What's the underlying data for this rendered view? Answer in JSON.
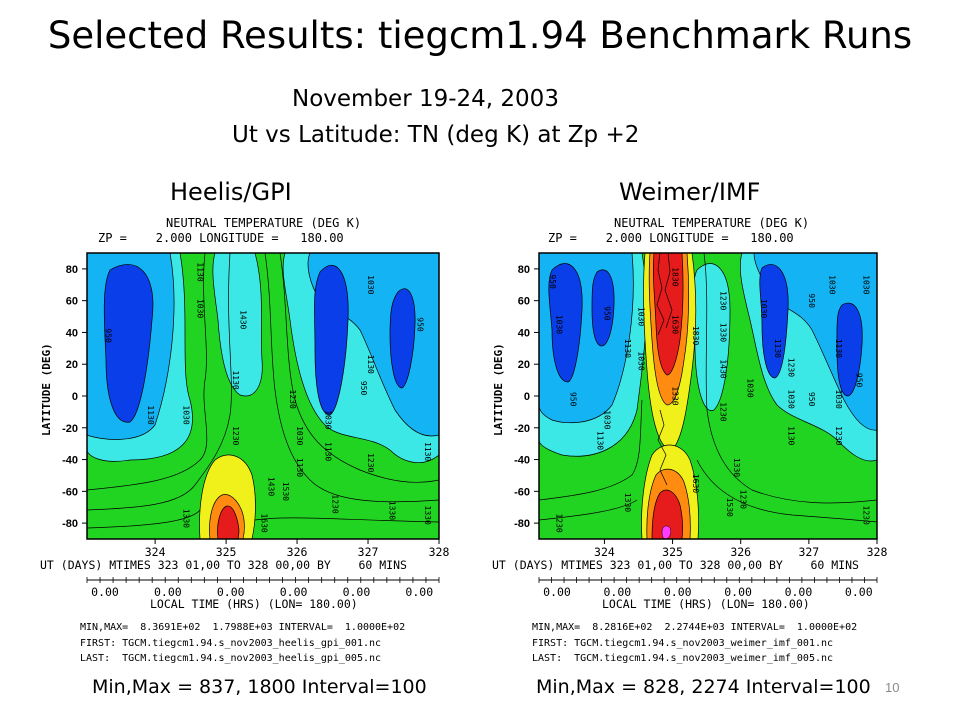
{
  "slide": {
    "title": "Selected Results: tiegcm1.94 Benchmark Runs",
    "date_line": "November 19-24, 2003",
    "subtitle": "Ut vs Latitude: TN (deg K) at Zp +2",
    "slide_number": "10"
  },
  "colors": {
    "dark_blue": "#0a3ee8",
    "light_blue": "#14b4f4",
    "cyan": "#3ce8e6",
    "green": "#22d422",
    "yellow": "#f0f01a",
    "orange": "#ff8c10",
    "red": "#e61b1b",
    "magenta": "#ff3cff"
  },
  "panels": [
    {
      "title": "Heelis/GPI",
      "plot_header_1": "NEUTRAL TEMPERATURE (DEG K)",
      "plot_header_2": "ZP =    2.000 LONGITUDE =   180.00",
      "ut_axis_line": "UT (DAYS) MTIMES 323 01,00 TO 328 00,00 BY    60 MINS",
      "local_time_ticks": [
        "0.00",
        "0.00",
        "0.00",
        "0.00",
        "0.00",
        "0.00"
      ],
      "local_time_label": "LOCAL TIME (HRS) (LON= 180.00)",
      "minmax_line": "MIN,MAX=  8.3691E+02  1.7988E+03 INTERVAL=  1.0000E+02",
      "first_line": "FIRST: TGCM.tiegcm1.94.s_nov2003_heelis_gpi_001.nc",
      "last_line": "LAST:  TGCM.tiegcm1.94.s_nov2003_heelis_gpi_005.nc",
      "summary": "Min,Max = 837, 1800 Interval=100"
    },
    {
      "title": "Weimer/IMF",
      "plot_header_1": "NEUTRAL TEMPERATURE (DEG K)",
      "plot_header_2": "ZP =    2.000 LONGITUDE =   180.00",
      "ut_axis_line": "UT (DAYS) MTIMES 323 01,00 TO 328 00,00 BY    60 MINS",
      "local_time_ticks": [
        "0.00",
        "0.00",
        "0.00",
        "0.00",
        "0.00",
        "0.00"
      ],
      "local_time_label": "LOCAL TIME (HRS) (LON= 180.00)",
      "minmax_line": "MIN,MAX=  8.2816E+02  2.2744E+03 INTERVAL=  1.0000E+02",
      "first_line": "FIRST: TGCM.tiegcm1.94.s_nov2003_weimer_imf_001.nc",
      "last_line": "LAST:  TGCM.tiegcm1.94.s_nov2003_weimer_imf_005.nc",
      "summary": "Min,Max = 828, 2274 Interval=100"
    }
  ],
  "chart_data": [
    {
      "type": "heatmap",
      "title": "NEUTRAL TEMPERATURE (DEG K)",
      "ylabel": "LATITUDE (DEG)",
      "xlim": [
        323.04,
        328.0
      ],
      "ylim": [
        -90,
        90
      ],
      "x_ticks": [
        324,
        325,
        326,
        327,
        328
      ],
      "y_ticks": [
        80,
        60,
        40,
        20,
        0,
        -20,
        -40,
        -60,
        -80
      ],
      "contour_interval": 100,
      "min": 837,
      "max": 1800,
      "contour_labels": [
        {
          "text": "1130",
          "x": 324.6,
          "y": 78
        },
        {
          "text": "1030",
          "x": 324.6,
          "y": 55
        },
        {
          "text": "1430",
          "x": 325.2,
          "y": 48
        },
        {
          "text": "950",
          "x": 323.3,
          "y": 38
        },
        {
          "text": "1130",
          "x": 325.1,
          "y": 10
        },
        {
          "text": "1130",
          "x": 323.9,
          "y": -12
        },
        {
          "text": "1030",
          "x": 324.4,
          "y": -12
        },
        {
          "text": "1230",
          "x": 325.1,
          "y": -25
        },
        {
          "text": "1230",
          "x": 325.9,
          "y": -2
        },
        {
          "text": "1030",
          "x": 326.0,
          "y": -25
        },
        {
          "text": "1130",
          "x": 326.0,
          "y": -45
        },
        {
          "text": "1030",
          "x": 326.4,
          "y": -15
        },
        {
          "text": "1130",
          "x": 326.4,
          "y": -35
        },
        {
          "text": "1430",
          "x": 325.6,
          "y": -57
        },
        {
          "text": "1530",
          "x": 325.8,
          "y": -60
        },
        {
          "text": "1630",
          "x": 325.5,
          "y": -80
        },
        {
          "text": "1330",
          "x": 324.4,
          "y": -77
        },
        {
          "text": "1230",
          "x": 326.5,
          "y": -68
        },
        {
          "text": "1230",
          "x": 327.0,
          "y": -42
        },
        {
          "text": "1330",
          "x": 327.3,
          "y": -72
        },
        {
          "text": "1130",
          "x": 327.0,
          "y": 20
        },
        {
          "text": "1030",
          "x": 327.0,
          "y": 70
        },
        {
          "text": "950",
          "x": 326.9,
          "y": 5
        },
        {
          "text": "950",
          "x": 327.7,
          "y": 45
        },
        {
          "text": "1130",
          "x": 327.8,
          "y": -35
        },
        {
          "text": "1330",
          "x": 327.8,
          "y": -75
        }
      ]
    },
    {
      "type": "heatmap",
      "title": "NEUTRAL TEMPERATURE (DEG K)",
      "ylabel": "LATITUDE (DEG)",
      "xlim": [
        323.04,
        328.0
      ],
      "ylim": [
        -90,
        90
      ],
      "x_ticks": [
        324,
        325,
        326,
        327,
        328
      ],
      "y_ticks": [
        80,
        60,
        40,
        20,
        0,
        -20,
        -40,
        -60,
        -80
      ],
      "contour_interval": 100,
      "min": 828,
      "max": 2274,
      "contour_labels": [
        {
          "text": "950",
          "x": 323.2,
          "y": 72
        },
        {
          "text": "1030",
          "x": 323.3,
          "y": 45
        },
        {
          "text": "950",
          "x": 323.5,
          "y": -2
        },
        {
          "text": "950",
          "x": 324.0,
          "y": 52
        },
        {
          "text": "1030",
          "x": 324.5,
          "y": 50
        },
        {
          "text": "1130",
          "x": 324.3,
          "y": 30
        },
        {
          "text": "1030",
          "x": 324.5,
          "y": 22
        },
        {
          "text": "1030",
          "x": 324.0,
          "y": -15
        },
        {
          "text": "1130",
          "x": 323.9,
          "y": -28
        },
        {
          "text": "1830",
          "x": 325.0,
          "y": 75
        },
        {
          "text": "1630",
          "x": 325.0,
          "y": 45
        },
        {
          "text": "1330",
          "x": 325.0,
          "y": 0
        },
        {
          "text": "1230",
          "x": 325.7,
          "y": 60
        },
        {
          "text": "1830",
          "x": 325.3,
          "y": 38
        },
        {
          "text": "1430",
          "x": 325.7,
          "y": 17
        },
        {
          "text": "1330",
          "x": 325.7,
          "y": 40
        },
        {
          "text": "1230",
          "x": 325.7,
          "y": -10
        },
        {
          "text": "1330",
          "x": 325.9,
          "y": -45
        },
        {
          "text": "1230",
          "x": 326.0,
          "y": -65
        },
        {
          "text": "1630",
          "x": 325.3,
          "y": -55
        },
        {
          "text": "1530",
          "x": 325.8,
          "y": -70
        },
        {
          "text": "1330",
          "x": 324.3,
          "y": -67
        },
        {
          "text": "1230",
          "x": 323.3,
          "y": -80
        },
        {
          "text": "1130",
          "x": 326.5,
          "y": 30
        },
        {
          "text": "1030",
          "x": 326.3,
          "y": 55
        },
        {
          "text": "1030",
          "x": 326.1,
          "y": 5
        },
        {
          "text": "1230",
          "x": 326.7,
          "y": 18
        },
        {
          "text": "1030",
          "x": 326.7,
          "y": -2
        },
        {
          "text": "1130",
          "x": 326.7,
          "y": -25
        },
        {
          "text": "950",
          "x": 327.0,
          "y": 60
        },
        {
          "text": "950",
          "x": 327.0,
          "y": -2
        },
        {
          "text": "1030",
          "x": 327.3,
          "y": 70
        },
        {
          "text": "1130",
          "x": 327.4,
          "y": 30
        },
        {
          "text": "1230",
          "x": 327.4,
          "y": -25
        },
        {
          "text": "1030",
          "x": 327.4,
          "y": -2
        },
        {
          "text": "1230",
          "x": 327.8,
          "y": -75
        },
        {
          "text": "950",
          "x": 327.7,
          "y": 10
        },
        {
          "text": "1030",
          "x": 327.8,
          "y": 70
        }
      ]
    }
  ]
}
